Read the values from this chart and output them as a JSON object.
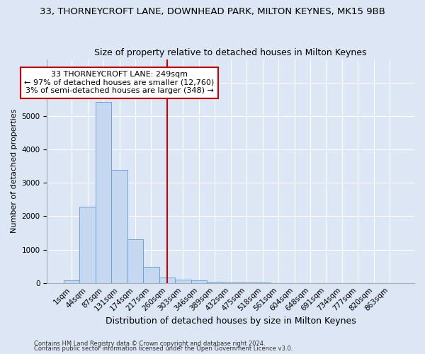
{
  "title1": "33, THORNEYCROFT LANE, DOWNHEAD PARK, MILTON KEYNES, MK15 9BB",
  "title2": "Size of property relative to detached houses in Milton Keynes",
  "xlabel": "Distribution of detached houses by size in Milton Keynes",
  "ylabel": "Number of detached properties",
  "annotation_line1": "33 THORNEYCROFT LANE: 249sqm",
  "annotation_line2": "← 97% of detached houses are smaller (12,760)",
  "annotation_line3": "3% of semi-detached houses are larger (348) →",
  "footer1": "Contains HM Land Registry data © Crown copyright and database right 2024.",
  "footer2": "Contains public sector information licensed under the Open Government Licence v3.0.",
  "bar_labels": [
    "1sqm",
    "44sqm",
    "87sqm",
    "131sqm",
    "174sqm",
    "217sqm",
    "260sqm",
    "303sqm",
    "346sqm",
    "389sqm",
    "432sqm",
    "475sqm",
    "518sqm",
    "561sqm",
    "604sqm",
    "648sqm",
    "691sqm",
    "734sqm",
    "777sqm",
    "820sqm",
    "863sqm"
  ],
  "bar_values": [
    75,
    2280,
    5420,
    3380,
    1310,
    490,
    160,
    110,
    75,
    40,
    20,
    10,
    5,
    3,
    2,
    1,
    1,
    1,
    0,
    0,
    0
  ],
  "bar_color": "#c5d8f0",
  "bar_edge_color": "#5b9bd5",
  "vline_x": 6.0,
  "vline_color": "#cc0000",
  "box_color": "#cc0000",
  "bg_color": "#dce6f5",
  "ylim": [
    0,
    6700
  ],
  "grid_color": "#ffffff",
  "title1_fontsize": 9.5,
  "title2_fontsize": 9,
  "xlabel_fontsize": 9,
  "ylabel_fontsize": 8,
  "tick_fontsize": 7.5,
  "ann_fontsize": 8,
  "footer_fontsize": 6
}
